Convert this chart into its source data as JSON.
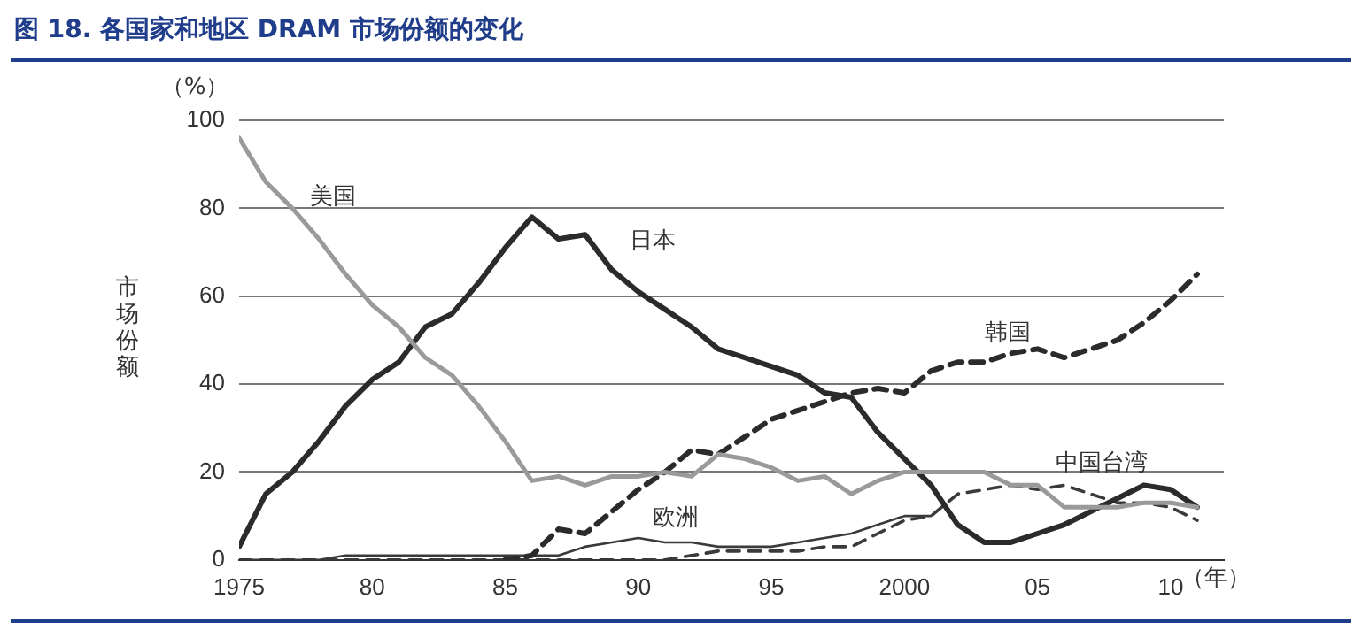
{
  "chart_data": {
    "type": "line",
    "title": "图 18. 各国家和地区 DRAM 市场份额的变化",
    "ylabel": "市场份额",
    "annotations": [
      "（%）",
      "（年）"
    ],
    "x": [
      1975,
      1976,
      1977,
      1978,
      1979,
      1980,
      1981,
      1982,
      1983,
      1984,
      1985,
      1986,
      1987,
      1988,
      1989,
      1990,
      1991,
      1992,
      1993,
      1994,
      1995,
      1996,
      1997,
      1998,
      1999,
      2000,
      2001,
      2002,
      2003,
      2004,
      2005,
      2006,
      2007,
      2008,
      2009,
      2010,
      2011
    ],
    "series": [
      {
        "name": "美国",
        "color": "#9a9a9a",
        "line_style": "solid",
        "values": [
          96,
          86,
          80,
          73,
          65,
          58,
          53,
          46,
          42,
          35,
          27,
          18,
          19,
          17,
          19,
          19,
          20,
          19,
          24,
          23,
          21,
          18,
          19,
          15,
          18,
          20,
          20,
          20,
          20,
          17,
          17,
          12,
          12,
          12,
          13,
          13,
          12
        ]
      },
      {
        "name": "日本",
        "color": "#2b2b2b",
        "line_style": "solid",
        "values": [
          3,
          15,
          20,
          27,
          35,
          41,
          45,
          53,
          56,
          63,
          71,
          78,
          73,
          74,
          66,
          61,
          57,
          53,
          48,
          46,
          44,
          42,
          38,
          37,
          29,
          23,
          17,
          8,
          4,
          4,
          6,
          8,
          11,
          14,
          17,
          16,
          12
        ]
      },
      {
        "name": "韩国",
        "color": "#2b2b2b",
        "line_style": "dashed",
        "values": [
          null,
          null,
          null,
          null,
          null,
          null,
          null,
          null,
          null,
          null,
          0,
          1,
          7,
          6,
          11,
          16,
          20,
          25,
          24,
          28,
          32,
          34,
          36,
          38,
          39,
          38,
          43,
          45,
          45,
          47,
          48,
          46,
          48,
          50,
          54,
          59,
          65
        ]
      },
      {
        "name": "欧洲",
        "color": "#3a3a3a",
        "line_style": "solid",
        "values": [
          0,
          0,
          0,
          0,
          1,
          1,
          1,
          1,
          1,
          1,
          1,
          1,
          1,
          3,
          4,
          5,
          4,
          4,
          3,
          3,
          3,
          4,
          5,
          6,
          8,
          10,
          10,
          null,
          null,
          null,
          null,
          null,
          null,
          null,
          null,
          null,
          null
        ]
      },
      {
        "name": "中国台湾",
        "color": "#3a3a3a",
        "line_style": "dashed",
        "values": [
          0,
          0,
          0,
          0,
          0,
          0,
          0,
          0,
          0,
          0,
          0,
          0,
          0,
          0,
          0,
          0,
          0,
          1,
          2,
          2,
          2,
          2,
          3,
          3,
          6,
          9,
          10,
          15,
          16,
          17,
          16,
          17,
          15,
          13,
          13,
          12,
          9
        ]
      }
    ],
    "xlim": [
      1975,
      2012
    ],
    "xticks": [
      {
        "value": 1975,
        "label": "1975"
      },
      {
        "value": 1980,
        "label": "80"
      },
      {
        "value": 1985,
        "label": "85"
      },
      {
        "value": 1990,
        "label": "90"
      },
      {
        "value": 1995,
        "label": "95"
      },
      {
        "value": 2000,
        "label": "2000"
      },
      {
        "value": 2005,
        "label": "05"
      },
      {
        "value": 2010,
        "label": "10"
      }
    ],
    "ylim": [
      0,
      100
    ],
    "yticks": [
      0,
      20,
      40,
      60,
      80,
      100
    ],
    "grid": "y",
    "legend": false,
    "marker": "none"
  }
}
